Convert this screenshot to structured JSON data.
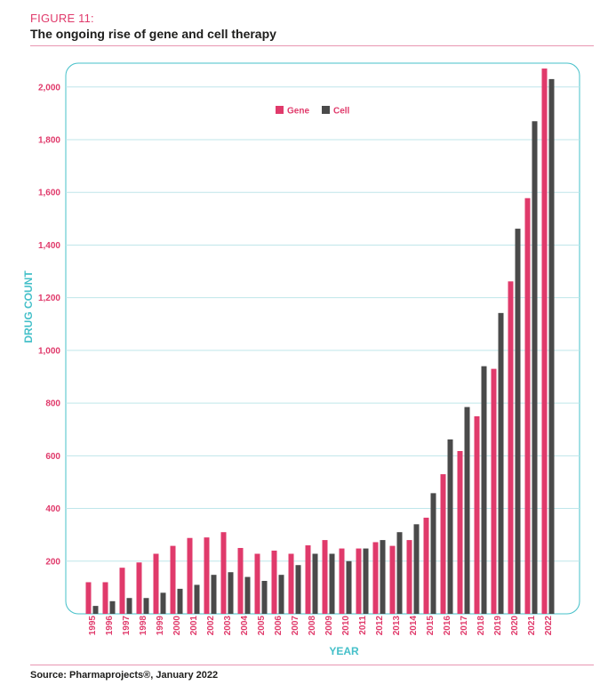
{
  "figure": {
    "label": "FIGURE 11:",
    "title": "The ongoing rise of gene and cell therapy",
    "source": "Source: Pharmaprojects®, January 2022"
  },
  "chart_data": {
    "type": "bar",
    "xlabel": "YEAR",
    "ylabel": "DRUG COUNT",
    "ylim": [
      0,
      2100
    ],
    "yticks": [
      {
        "value": 200,
        "label": "200"
      },
      {
        "value": 400,
        "label": "400"
      },
      {
        "value": 600,
        "label": "600"
      },
      {
        "value": 800,
        "label": "800"
      },
      {
        "value": 1000,
        "label": "1,000"
      },
      {
        "value": 1200,
        "label": "1,200"
      },
      {
        "value": 1400,
        "label": "1,400"
      },
      {
        "value": 1600,
        "label": "1,600"
      },
      {
        "value": 1800,
        "label": "1,800"
      },
      {
        "value": 2000,
        "label": "2,000"
      }
    ],
    "grid": true,
    "legend_position": "top-center",
    "categories": [
      "1995",
      "1996",
      "1997",
      "1998",
      "1999",
      "2000",
      "2001",
      "2002",
      "2003",
      "2004",
      "2005",
      "2006",
      "2007",
      "2008",
      "2009",
      "2010",
      "2011",
      "2012",
      "2013",
      "2014",
      "2015",
      "2016",
      "2017",
      "2018",
      "2019",
      "2020",
      "2021",
      "2022"
    ],
    "series": [
      {
        "name": "Gene",
        "color": "#e03a6b",
        "values": [
          120,
          120,
          175,
          195,
          228,
          258,
          288,
          290,
          310,
          250,
          228,
          240,
          228,
          260,
          280,
          248,
          248,
          272,
          258,
          280,
          365,
          530,
          618,
          750,
          930,
          1262,
          1578,
          2070
        ]
      },
      {
        "name": "Cell",
        "color": "#4a4a4a",
        "values": [
          30,
          48,
          60,
          60,
          80,
          95,
          110,
          148,
          158,
          140,
          125,
          148,
          185,
          228,
          228,
          200,
          248,
          280,
          310,
          340,
          458,
          662,
          785,
          940,
          1142,
          1462,
          1870,
          2030
        ]
      }
    ]
  }
}
